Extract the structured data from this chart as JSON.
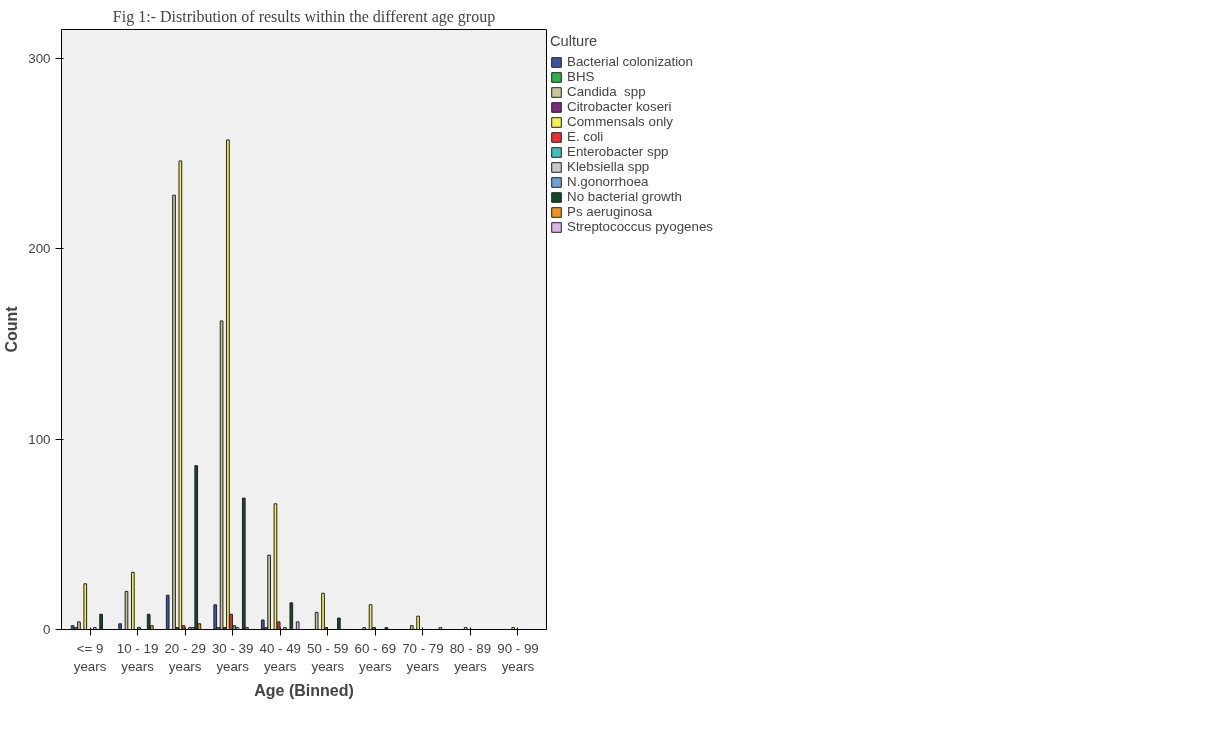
{
  "chart_data": {
    "type": "bar",
    "title": "Fig 1:- Distribution of results within the different age group",
    "xlabel": "Age (Binned)",
    "ylabel": "Count",
    "legend_title": "Culture",
    "legend": "right",
    "grid": false,
    "categories": [
      "<= 9\nyears",
      "10 - 19\nyears",
      "20 - 29\nyears",
      "30 - 39\nyears",
      "40 - 49\nyears",
      "50 - 59\nyears",
      "60 - 69\nyears",
      "70 - 79\nyears",
      "80 - 89\nyears",
      "90 - 99\nyears"
    ],
    "ylim": [
      0,
      315
    ],
    "yticks": [
      0,
      100,
      200,
      300
    ],
    "series": [
      {
        "name": "Bacterial colonization",
        "color": "#3a54a4",
        "values": [
          2,
          3,
          18,
          13,
          5,
          null,
          null,
          null,
          null,
          null
        ]
      },
      {
        "name": "BHS",
        "color": "#2db34a",
        "values": [
          1,
          null,
          null,
          1,
          1,
          null,
          null,
          null,
          null,
          null
        ]
      },
      {
        "name": "Candida  spp",
        "color": "#c8c597",
        "values": [
          4,
          20,
          228,
          162,
          39,
          9,
          1,
          2,
          null,
          null
        ]
      },
      {
        "name": "Citrobacter koseri",
        "color": "#7b2a7f",
        "values": [
          null,
          null,
          1,
          1,
          null,
          null,
          null,
          null,
          null,
          null
        ]
      },
      {
        "name": "Commensals only",
        "color": "#f5f04f",
        "values": [
          24,
          30,
          246,
          257,
          66,
          19,
          13,
          7,
          1,
          1
        ]
      },
      {
        "name": "E. coli",
        "color": "#ee2e2e",
        "values": [
          null,
          null,
          2,
          8,
          4,
          1,
          1,
          null,
          null,
          null
        ]
      },
      {
        "name": "Enterobacter spp",
        "color": "#3ebfbf",
        "values": [
          null,
          1,
          null,
          2,
          null,
          null,
          null,
          null,
          null,
          null
        ]
      },
      {
        "name": "Klebsiella spp",
        "color": "#c8c8c8",
        "values": [
          1,
          null,
          1,
          1,
          1,
          null,
          null,
          null,
          null,
          null
        ]
      },
      {
        "name": "N.gonorrhoea",
        "color": "#6fa0d8",
        "values": [
          null,
          null,
          1,
          null,
          null,
          null,
          null,
          null,
          null,
          null
        ]
      },
      {
        "name": "No bacterial growth",
        "color": "#0f4c25",
        "values": [
          8,
          8,
          86,
          69,
          14,
          6,
          1,
          null,
          null,
          null
        ]
      },
      {
        "name": "Ps aeruginosa",
        "color": "#f39219",
        "values": [
          null,
          2,
          3,
          1,
          null,
          null,
          null,
          null,
          null,
          null
        ]
      },
      {
        "name": "Streptococcus pyogenes",
        "color": "#d8b4e8",
        "values": [
          null,
          null,
          null,
          null,
          4,
          null,
          null,
          1,
          null,
          null
        ]
      }
    ]
  }
}
